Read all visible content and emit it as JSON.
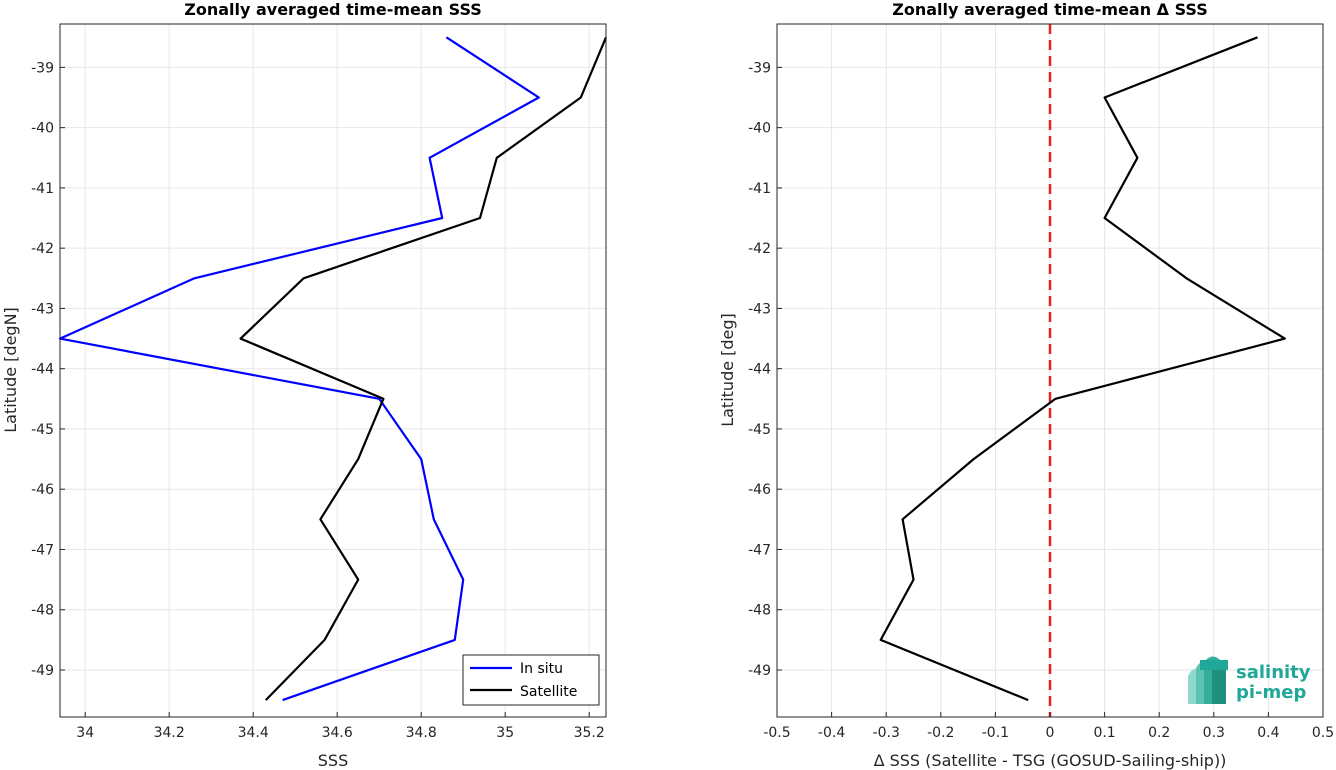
{
  "chart_data": [
    {
      "type": "line",
      "title": "Zonally averaged time-mean SSS",
      "xlabel": "SSS",
      "ylabel": "Latitude [degN]",
      "xlim": [
        33.94,
        35.24
      ],
      "ylim": [
        -49.78,
        -38.28
      ],
      "xticks": [
        34,
        34.2,
        34.4,
        34.6,
        34.8,
        35,
        35.2
      ],
      "xtick_labels": [
        "34",
        "34.2",
        "34.4",
        "34.6",
        "34.8",
        "35",
        "35.2"
      ],
      "yticks": [
        -39,
        -40,
        -41,
        -42,
        -43,
        -44,
        -45,
        -46,
        -47,
        -48,
        -49
      ],
      "ytick_labels": [
        "-39",
        "-40",
        "-41",
        "-42",
        "-43",
        "-44",
        "-45",
        "-46",
        "-47",
        "-48",
        "-49"
      ],
      "grid": true,
      "legend_position": "bottom-right",
      "series": [
        {
          "name": "In situ",
          "color": "#0000ff",
          "points": [
            [
              34.86,
              -38.5
            ],
            [
              35.08,
              -39.5
            ],
            [
              34.82,
              -40.5
            ],
            [
              34.85,
              -41.5
            ],
            [
              34.26,
              -42.5
            ],
            [
              33.94,
              -43.5
            ],
            [
              34.7,
              -44.5
            ],
            [
              34.8,
              -45.5
            ],
            [
              34.83,
              -46.5
            ],
            [
              34.9,
              -47.5
            ],
            [
              34.88,
              -48.5
            ],
            [
              34.47,
              -49.5
            ]
          ]
        },
        {
          "name": "Satellite",
          "color": "#000000",
          "points": [
            [
              35.24,
              -38.5
            ],
            [
              35.18,
              -39.5
            ],
            [
              34.98,
              -40.5
            ],
            [
              34.94,
              -41.5
            ],
            [
              34.52,
              -42.5
            ],
            [
              34.37,
              -43.5
            ],
            [
              34.71,
              -44.5
            ],
            [
              34.65,
              -45.5
            ],
            [
              34.56,
              -46.5
            ],
            [
              34.65,
              -47.5
            ],
            [
              34.57,
              -48.5
            ],
            [
              34.43,
              -49.5
            ]
          ]
        }
      ]
    },
    {
      "type": "line",
      "title": "Zonally averaged time-mean Δ SSS",
      "xlabel": "Δ SSS (Satellite - TSG (GOSUD-Sailing-ship))",
      "ylabel": "Latitude [deg]",
      "xlim": [
        -0.5,
        0.5
      ],
      "ylim": [
        -49.78,
        -38.28
      ],
      "xticks": [
        -0.5,
        -0.4,
        -0.3,
        -0.2,
        -0.1,
        0,
        0.1,
        0.2,
        0.3,
        0.4,
        0.5
      ],
      "xtick_labels": [
        "-0.5",
        "-0.4",
        "-0.3",
        "-0.2",
        "-0.1",
        "0",
        "0.1",
        "0.2",
        "0.3",
        "0.4",
        "0.5"
      ],
      "yticks": [
        -39,
        -40,
        -41,
        -42,
        -43,
        -44,
        -45,
        -46,
        -47,
        -48,
        -49
      ],
      "ytick_labels": [
        "-39",
        "-40",
        "-41",
        "-42",
        "-43",
        "-44",
        "-45",
        "-46",
        "-47",
        "-48",
        "-49"
      ],
      "grid": true,
      "reference_line": {
        "x": 0,
        "color": "#e8231f",
        "style": "dashed"
      },
      "series": [
        {
          "color": "#000000",
          "points": [
            [
              0.38,
              -38.5
            ],
            [
              0.1,
              -39.5
            ],
            [
              0.16,
              -40.5
            ],
            [
              0.1,
              -41.5
            ],
            [
              0.25,
              -42.5
            ],
            [
              0.43,
              -43.5
            ],
            [
              0.01,
              -44.5
            ],
            [
              -0.14,
              -45.5
            ],
            [
              -0.27,
              -46.5
            ],
            [
              -0.25,
              -47.5
            ],
            [
              -0.31,
              -48.5
            ],
            [
              -0.04,
              -49.5
            ]
          ]
        }
      ]
    }
  ],
  "logo": {
    "line1": "salinity",
    "line2": "pi-mep",
    "color": "#1fa89a"
  }
}
